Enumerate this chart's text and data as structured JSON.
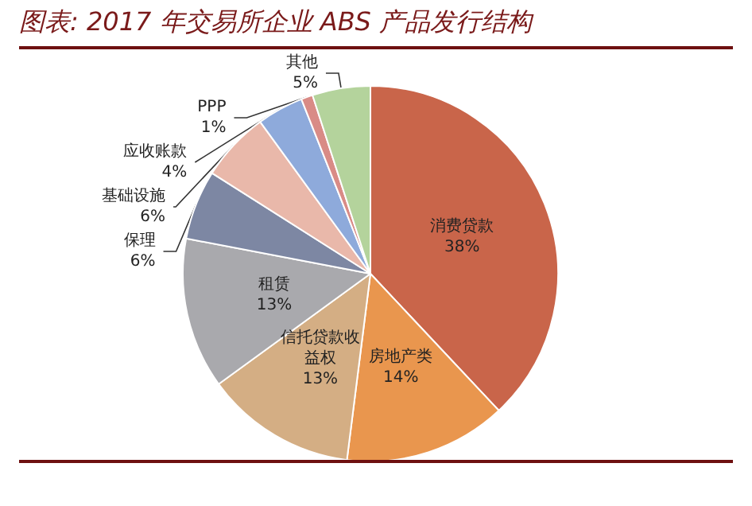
{
  "chart_data": {
    "type": "pie",
    "title": "图表: 2017 年交易所企业 ABS 产品发行结构",
    "categories": [
      "消费贷款",
      "房地产类",
      "信托贷款收益权",
      "租赁",
      "保理",
      "基础设施",
      "应收账款",
      "PPP",
      "其他"
    ],
    "values": [
      38,
      14,
      13,
      13,
      6,
      6,
      4,
      1,
      5
    ],
    "value_labels": [
      "38%",
      "14%",
      "13%",
      "13%",
      "6%",
      "6%",
      "4%",
      "1%",
      "5%"
    ],
    "colors": [
      "#c9654a",
      "#e9964e",
      "#d4ae84",
      "#a9a9ad",
      "#7d87a3",
      "#e9b8aa",
      "#8eaadb",
      "#d98b86",
      "#b4d39c"
    ],
    "legend": false
  }
}
